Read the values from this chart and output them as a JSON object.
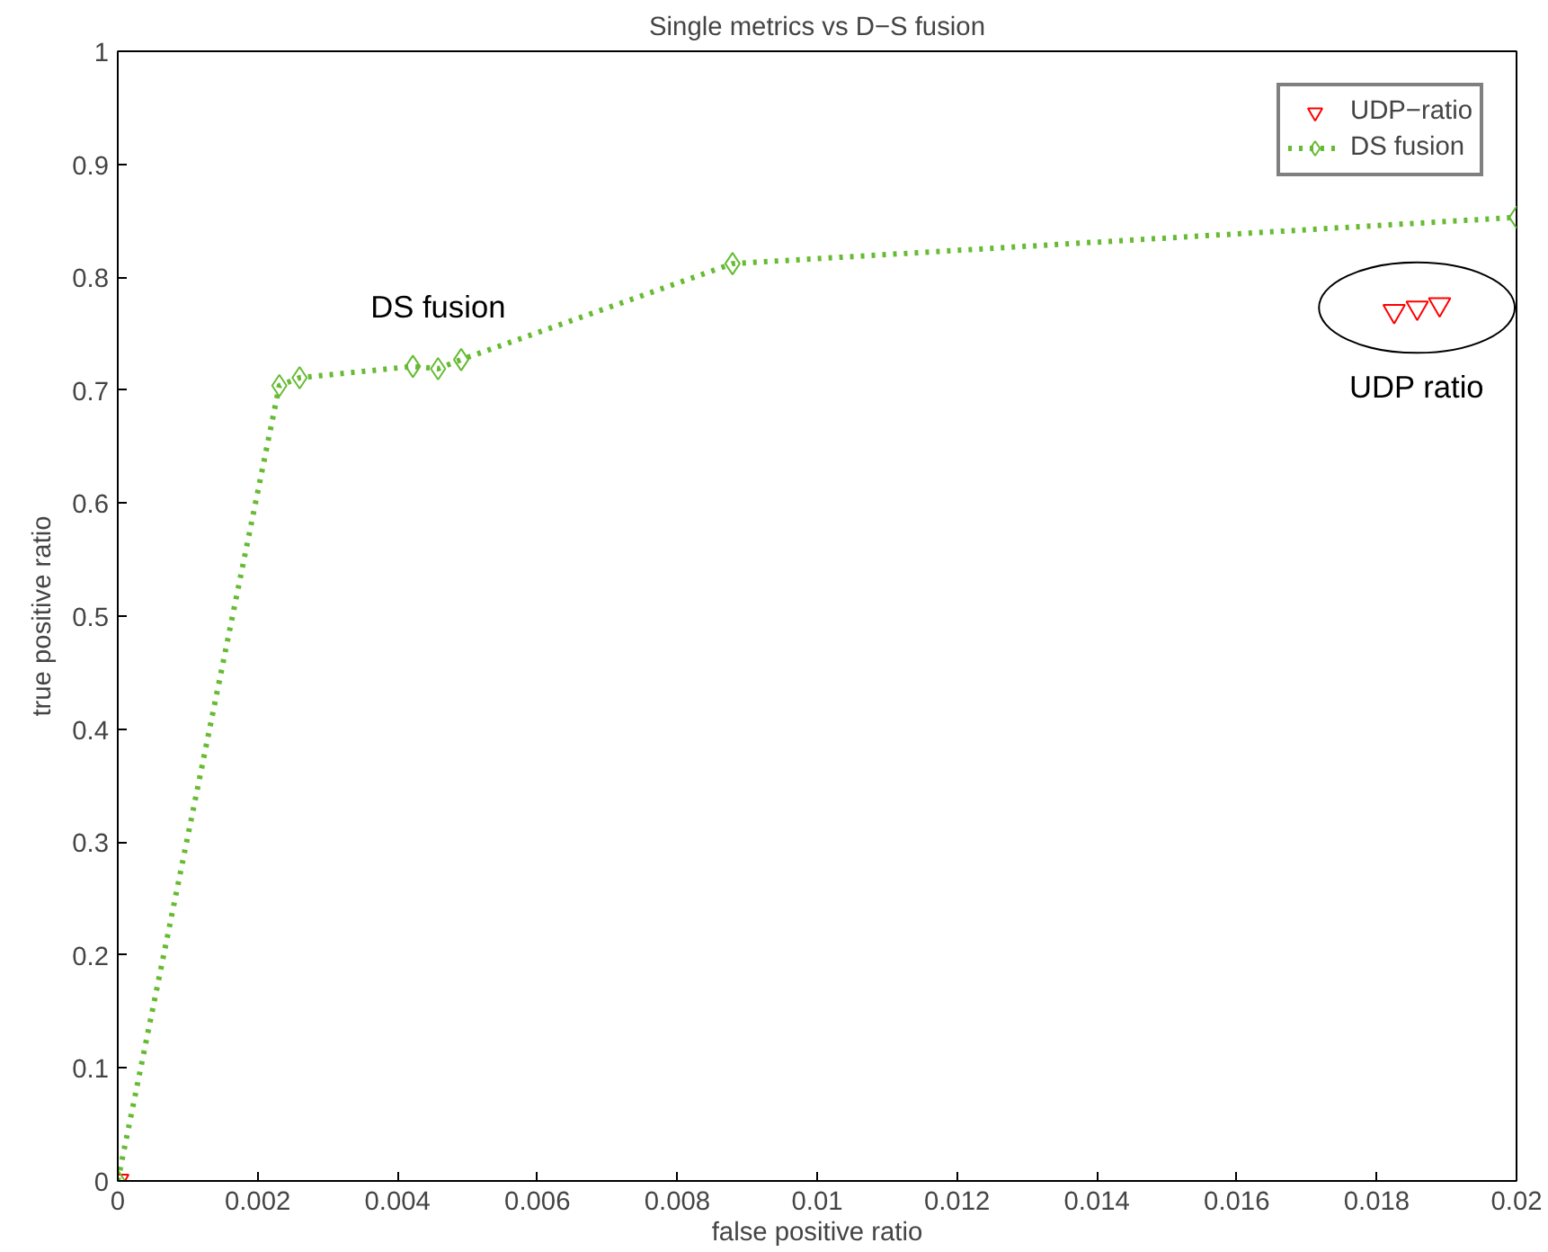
{
  "chart_data": {
    "type": "line",
    "title": "Single metrics vs D−S fusion",
    "xlabel": "false positive ratio",
    "ylabel": "true positive ratio",
    "xlim": [
      0,
      0.02
    ],
    "ylim": [
      0,
      1
    ],
    "xticks": [
      0,
      0.002,
      0.004,
      0.006,
      0.008,
      0.01,
      0.012,
      0.014,
      0.016,
      0.018,
      0.02
    ],
    "yticks": [
      0,
      0.1,
      0.2,
      0.3,
      0.4,
      0.5,
      0.6,
      0.7,
      0.8,
      0.9,
      1
    ],
    "grid": false,
    "legend": "top right",
    "series": [
      {
        "name": "UDP−ratio",
        "type": "scatter",
        "color": "#ff0000",
        "marker": "triangle",
        "x": [
          0,
          0.01825,
          0.01858,
          0.0189
        ],
        "values": [
          0,
          0.77,
          0.773,
          0.776
        ]
      },
      {
        "name": "DS fusion",
        "color": "#66bb33",
        "marker": "diamond",
        "line_style": "dotted",
        "x": [
          0,
          0.00231,
          0.0026,
          0.00422,
          0.00458,
          0.00491,
          0.00879,
          0.02
        ],
        "values": [
          0,
          0.704,
          0.711,
          0.721,
          0.719,
          0.727,
          0.812,
          0.853
        ]
      }
    ],
    "annotations": [
      "UDP ratio",
      "DS fusion"
    ]
  }
}
